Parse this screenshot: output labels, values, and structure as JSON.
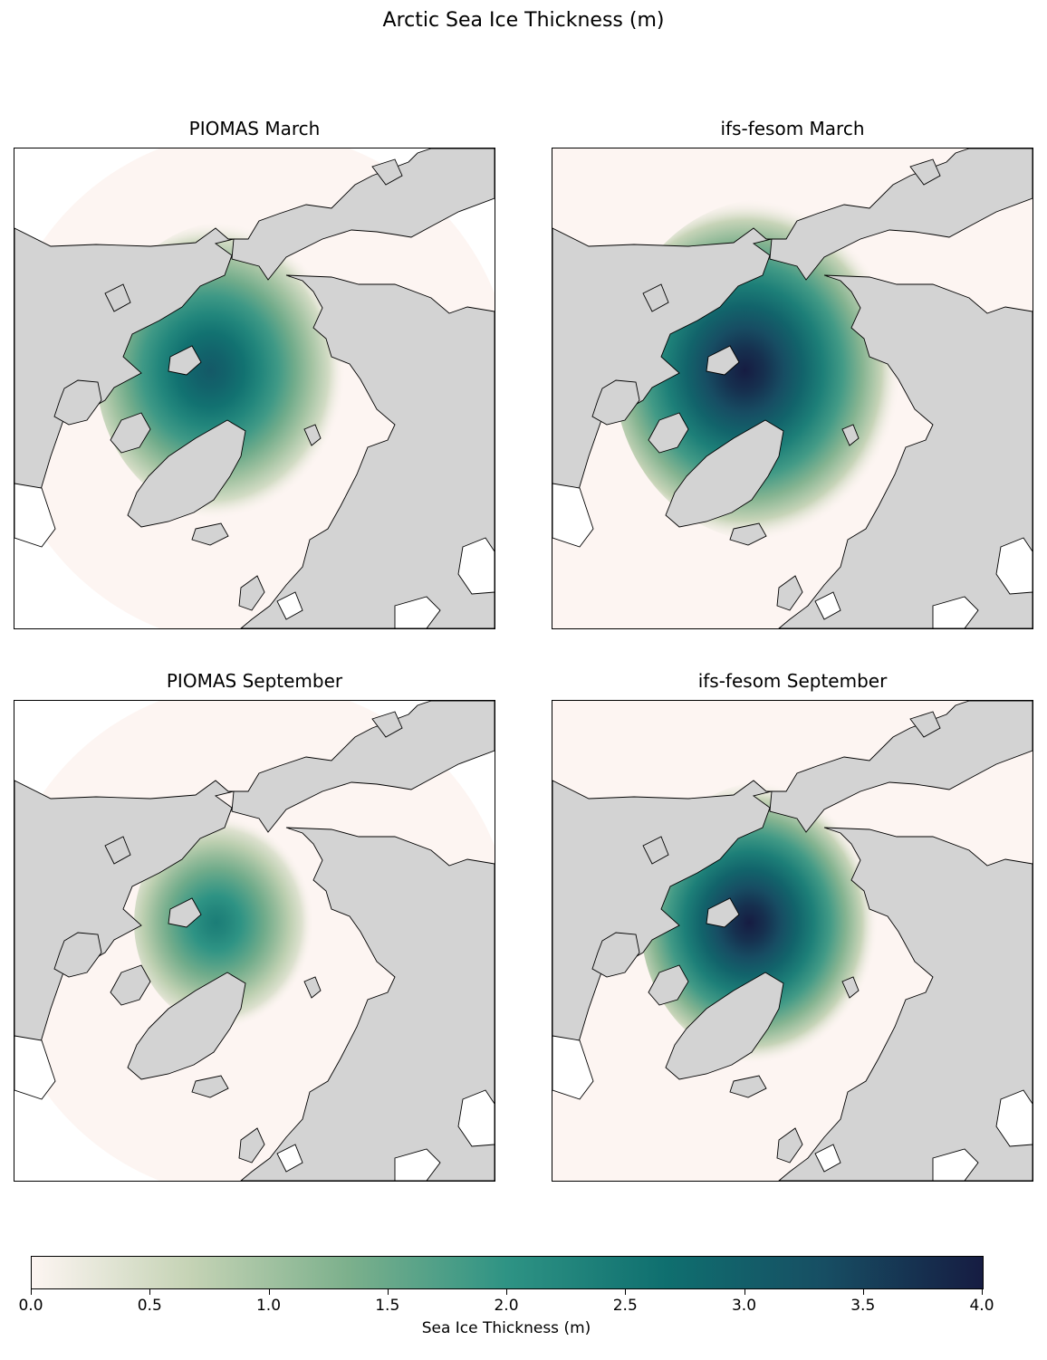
{
  "title": "Arctic Sea Ice Thickness (m)",
  "panels": [
    {
      "title": "PIOMAS March",
      "source": "PIOMAS",
      "month": "March",
      "max_level": 0.78,
      "spread": 1.0
    },
    {
      "title": "ifs-fesom March",
      "source": "ifs-fesom",
      "month": "March",
      "max_level": 1.0,
      "spread": 1.15
    },
    {
      "title": "PIOMAS September",
      "source": "PIOMAS",
      "month": "September",
      "max_level": 0.6,
      "spread": 0.72
    },
    {
      "title": "ifs-fesom September",
      "source": "ifs-fesom",
      "month": "September",
      "max_level": 1.0,
      "spread": 0.95
    }
  ],
  "colorbar": {
    "label": "Sea Ice Thickness (m)",
    "min": 0.0,
    "max": 4.0,
    "ticks": [
      "0.0",
      "0.5",
      "1.0",
      "1.5",
      "2.0",
      "2.5",
      "3.0",
      "3.5",
      "4.0"
    ],
    "colors": [
      "#fdf5f2",
      "#c5d3b5",
      "#7cb08c",
      "#2e9384",
      "#0f6f6f",
      "#174e63",
      "#161c42"
    ]
  },
  "colors": {
    "land": "#d3d3d3",
    "ocean_no_ice": "#fdf5f2",
    "outside_domain": "#ffffff",
    "coastline": "#000000"
  }
}
